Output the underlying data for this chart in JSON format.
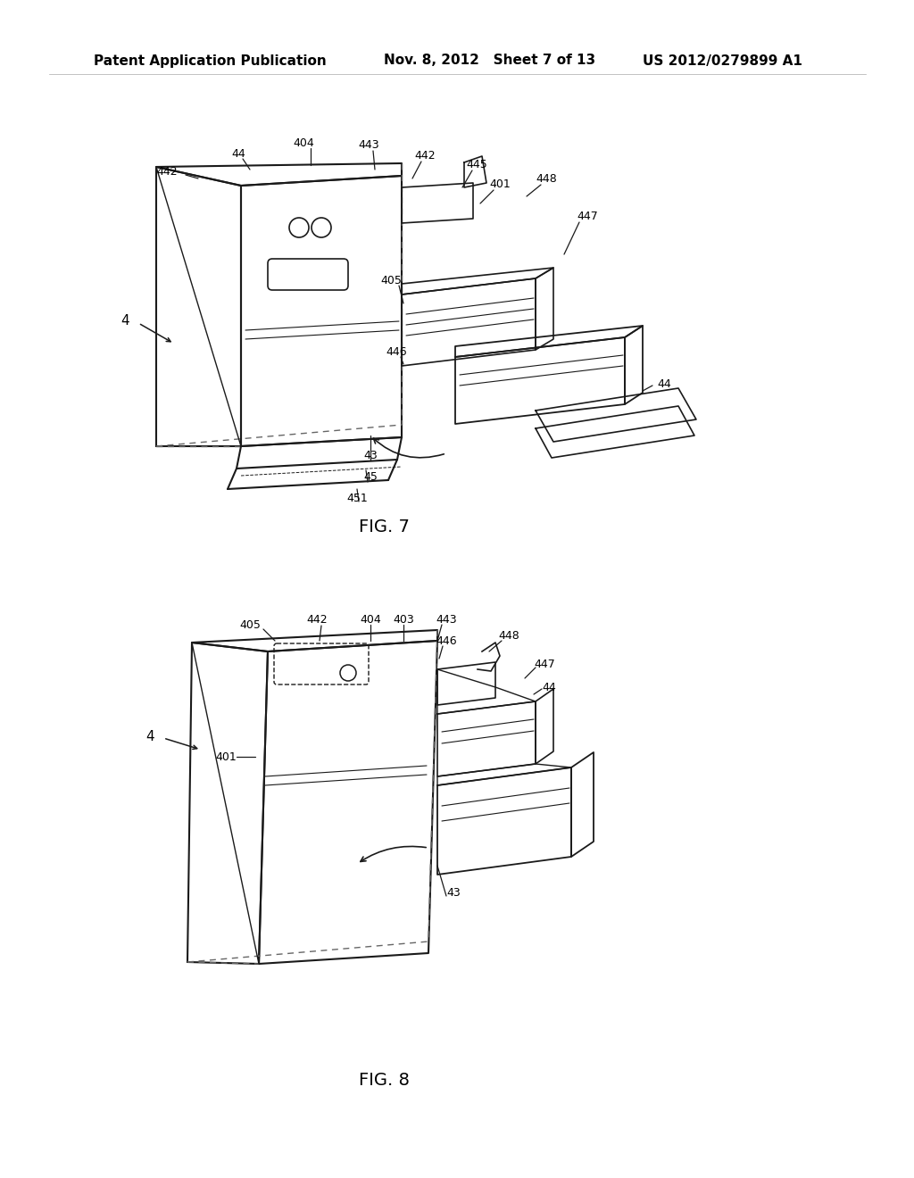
{
  "background_color": "#ffffff",
  "header_left": "Patent Application Publication",
  "header_mid": "Nov. 8, 2012   Sheet 7 of 13",
  "header_right": "US 2012/0279899 A1",
  "fig7_label": "FIG. 7",
  "fig8_label": "FIG. 8",
  "line_color": "#1a1a1a",
  "text_color": "#000000"
}
